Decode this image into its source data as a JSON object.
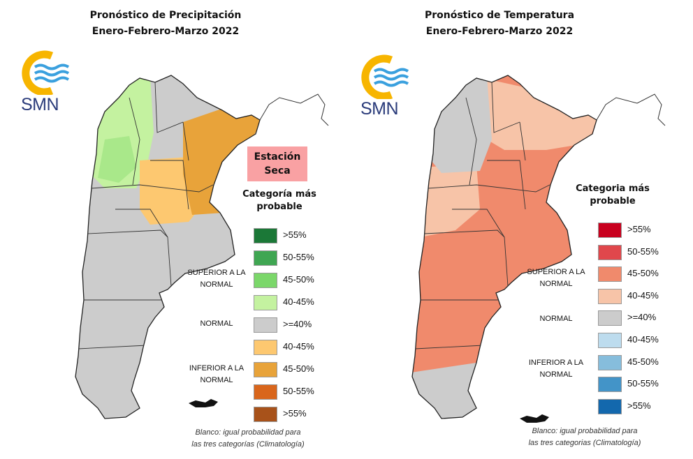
{
  "logo_text": "SMN",
  "precipitation": {
    "title_line1": "Pronóstico de Precipitación",
    "title_line2": "Enero-Febrero-Marzo 2022",
    "badge": "Estación Seca",
    "legend_title": "Categoría más probable",
    "categories": {
      "superior": "SUPERIOR A LA NORMAL",
      "normal": "NORMAL",
      "inferior": "INFERIOR A LA NORMAL"
    },
    "legend": [
      {
        "label": ">55%",
        "color": "#1b7837"
      },
      {
        "label": "50-55%",
        "color": "#3fa652"
      },
      {
        "label": "45-50%",
        "color": "#7bd76a"
      },
      {
        "label": "40-45%",
        "color": "#c4f2a0"
      },
      {
        "label": ">=40%",
        "color": "#cccccc"
      },
      {
        "label": "40-45%",
        "color": "#fdc870"
      },
      {
        "label": "45-50%",
        "color": "#e8a33a"
      },
      {
        "label": "50-55%",
        "color": "#d9661c"
      },
      {
        "label": ">55%",
        "color": "#a8521a"
      }
    ],
    "footnote_line1": "Blanco: igual probabilidad para",
    "footnote_line2": "las tres categorías (Climatología)"
  },
  "temperature": {
    "title_line1": "Pronóstico de Temperatura",
    "title_line2": "Enero-Febrero-Marzo 2022",
    "legend_title": "Categoria más probable",
    "categories": {
      "superior": "SUPERIOR A LA NORMAL",
      "normal": "NORMAL",
      "inferior": "INFERIOR A LA NORMAL"
    },
    "legend": [
      {
        "label": ">55%",
        "color": "#c8001e"
      },
      {
        "label": "50-55%",
        "color": "#e0474c"
      },
      {
        "label": "45-50%",
        "color": "#f08a6c"
      },
      {
        "label": "40-45%",
        "color": "#f7c4a8"
      },
      {
        "label": ">=40%",
        "color": "#cccccc"
      },
      {
        "label": "40-45%",
        "color": "#bddcee"
      },
      {
        "label": "45-50%",
        "color": "#86bddc"
      },
      {
        "label": "50-55%",
        "color": "#4394c8"
      },
      {
        "label": ">55%",
        "color": "#1368ad"
      }
    ],
    "footnote_line1": "Blanco: igual probabilidad para",
    "footnote_line2": "las tres categorias (Climatología)"
  }
}
